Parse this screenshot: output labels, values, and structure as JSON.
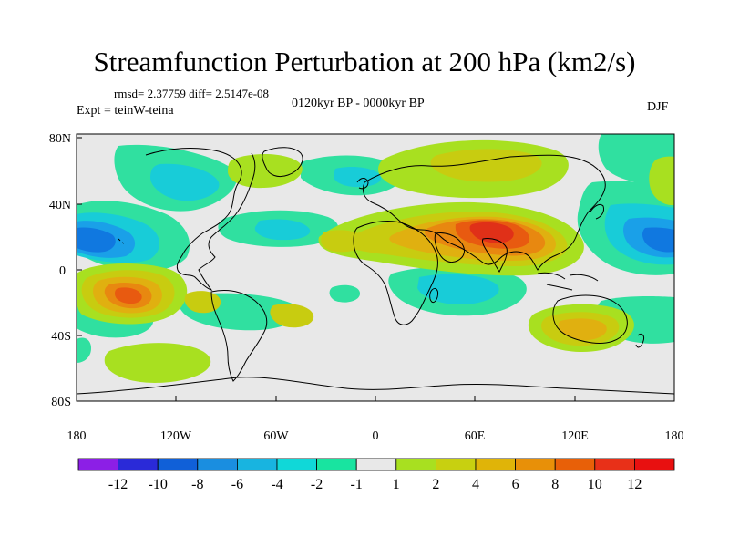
{
  "title": "Streamfunction Perturbation at 200 hPa (km2/s)",
  "stats": "rmsd= 2.37759 diff= 2.5147e-08",
  "experiment": "Expt = teinW-teina",
  "period": "0120kyr BP - 0000kyr BP",
  "season": "DJF",
  "map": {
    "lat_labels": [
      "80N",
      "40N",
      "0",
      "40S",
      "80S"
    ],
    "lon_labels": [
      "180",
      "120W",
      "60W",
      "0",
      "60E",
      "120E",
      "180"
    ]
  },
  "colorbar": {
    "labels": [
      "-12",
      "-10",
      "-8",
      "-6",
      "-4",
      "-2",
      "-1",
      "1",
      "2",
      "4",
      "6",
      "8",
      "10",
      "12"
    ],
    "colors": [
      "#8c1fe6",
      "#2a2ad8",
      "#1060d8",
      "#1a8ee0",
      "#18b4e0",
      "#10d8d8",
      "#18e4a0",
      "#e8e8e8",
      "#a8e020",
      "#c8d010",
      "#e0b408",
      "#e89008",
      "#e86008",
      "#e83018",
      "#e81010"
    ]
  },
  "palette": {
    "background": "#e8e8e8",
    "neg1": "#30e0a0",
    "neg2": "#18ccd8",
    "neg3": "#1aa0e8",
    "neg4": "#1078e0",
    "neg5": "#1050d0",
    "pos1": "#a8e020",
    "pos2": "#c8cc10",
    "pos3": "#e0b010",
    "pos4": "#e88810",
    "pos5": "#e85a10",
    "pos6": "#e03018"
  }
}
